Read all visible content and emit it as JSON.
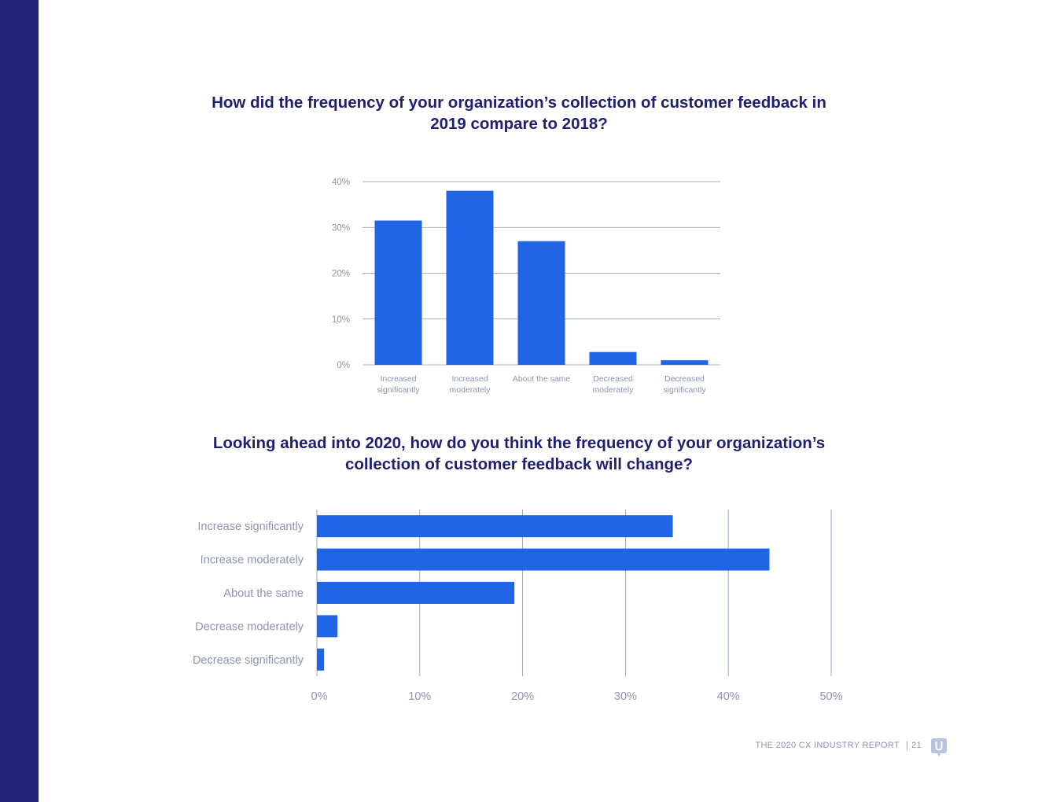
{
  "footer": {
    "report": "THE 2020 CX INDUSTRY REPORT",
    "separator": "|",
    "page": "21"
  },
  "colors": {
    "sidebar": "#222277",
    "bar": "#2065e6",
    "title": "#1f2070",
    "axis_text": "#8c95b2",
    "gridline": "#8c95b2"
  },
  "logo_icon": "u-speech-bubble-logo-icon",
  "chart_data": [
    {
      "type": "bar",
      "orientation": "vertical",
      "title": "How did the frequency of your organization’s collection of customer feedback in 2019 compare to 2018?",
      "categories": [
        [
          "Increased",
          "significantly"
        ],
        [
          "Increased",
          "moderately"
        ],
        [
          "About the same"
        ],
        [
          "Decreased",
          "moderately"
        ],
        [
          "Decreased",
          "significantly"
        ]
      ],
      "values": [
        31.5,
        38,
        27,
        2.8,
        1
      ],
      "ylim": [
        0,
        40
      ],
      "yticks": [
        "0%",
        "10%",
        "20%",
        "30%",
        "40%"
      ],
      "grid": true
    },
    {
      "type": "bar",
      "orientation": "horizontal",
      "title": "Looking ahead into 2020, how do you think the frequency of your organization’s collection of customer feedback will change?",
      "categories": [
        "Increase significantly",
        "Increase moderately",
        "About the same",
        "Decrease moderately",
        "Decrease significantly"
      ],
      "values": [
        34.6,
        44,
        19.2,
        2,
        0.7
      ],
      "xlim": [
        0,
        50
      ],
      "xticks": [
        "0%",
        "10%",
        "20%",
        "30%",
        "40%",
        "50%"
      ],
      "grid": true
    }
  ]
}
